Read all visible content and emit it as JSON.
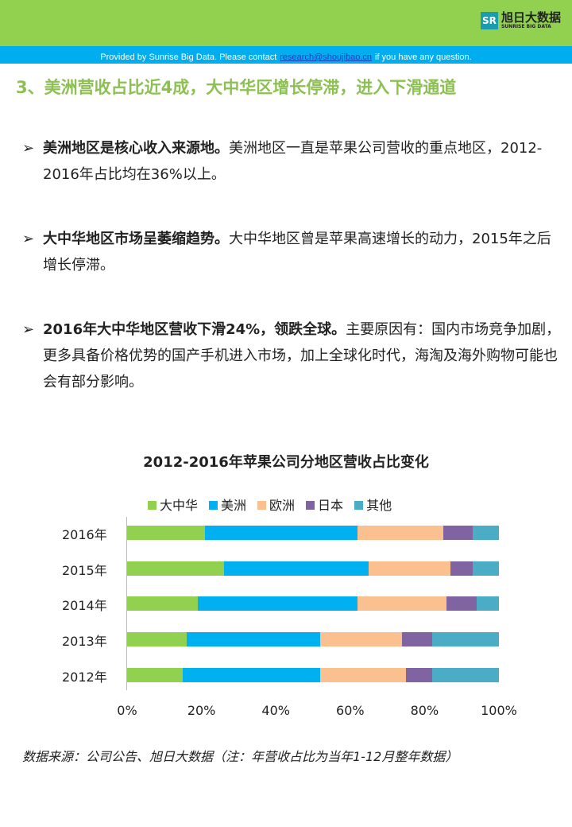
{
  "header": {
    "logo_cn": "旭日大数据",
    "logo_en": "SUNRISE BIG DATA",
    "logo_mark": "SR",
    "notice_pre": "Provided by Sunrise Big Data. Please contact",
    "notice_email": "research@shoujibao.cn",
    "notice_post": "if you have any question."
  },
  "title": "3、美洲营收占比近4成，大中华区增长停滞，进入下滑通道",
  "bullets": [
    {
      "bold": "美洲地区是核心收入来源地。",
      "text": "美洲地区一直是苹果公司营收的重点地区，2012-2016年占比均在36%以上。"
    },
    {
      "bold": "大中华地区市场呈萎缩趋势。",
      "text": "大中华地区曾是苹果高速增长的动力，2015年之后增长停滞。"
    },
    {
      "bold": "2016年大中华地区营收下滑24%，领跌全球。",
      "text": "主要原因有：国内市场竞争加剧，更多具备价格优势的国产手机进入市场，加上全球化时代，海淘及海外购物可能也会有部分影响。"
    }
  ],
  "bullet_marker": "➢",
  "chart_data": {
    "type": "bar",
    "orientation": "horizontal",
    "stacked": "percent",
    "title": "2012-2016年苹果公司分地区营收占比变化",
    "categories": [
      "2016年",
      "2015年",
      "2014年",
      "2013年",
      "2012年"
    ],
    "series": [
      {
        "name": "大中华",
        "color": "#92d050",
        "values": [
          21,
          26,
          19,
          16,
          15
        ]
      },
      {
        "name": "美洲",
        "color": "#00b0f0",
        "values": [
          41,
          39,
          43,
          36,
          37
        ]
      },
      {
        "name": "欧洲",
        "color": "#fac090",
        "values": [
          23,
          22,
          24,
          22,
          23
        ]
      },
      {
        "name": "日本",
        "color": "#8064a2",
        "values": [
          8,
          6,
          8,
          8,
          7
        ]
      },
      {
        "name": "其他",
        "color": "#4bacc6",
        "values": [
          7,
          7,
          6,
          18,
          18
        ]
      }
    ],
    "xticks": [
      "0%",
      "20%",
      "40%",
      "60%",
      "80%",
      "100%"
    ],
    "xlim": [
      0,
      100
    ],
    "legend": "top"
  },
  "source": "数据来源：公司公告、旭日大数据（注：年营收占比为当年1-12月整年数据）"
}
